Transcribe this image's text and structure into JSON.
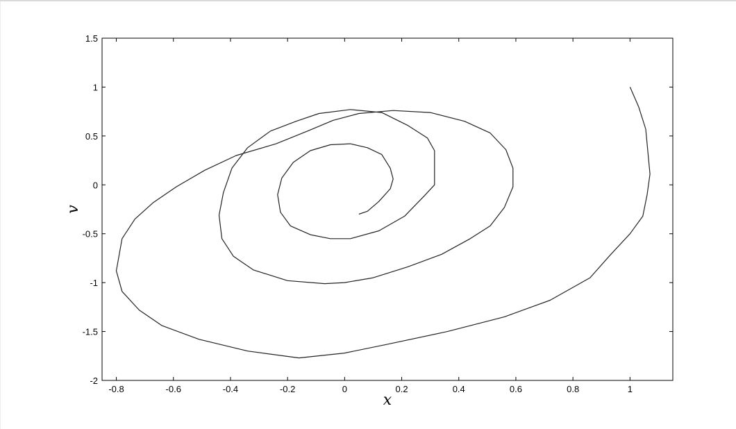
{
  "chart_data": {
    "type": "line",
    "title": "",
    "xlabel": "x",
    "ylabel": "v",
    "xlim": [
      -0.85,
      1.15
    ],
    "ylim": [
      -2,
      1.5
    ],
    "xticks": [
      -0.8,
      -0.6,
      -0.4,
      -0.2,
      0,
      0.2,
      0.4,
      0.6,
      0.8,
      1
    ],
    "xtick_labels": [
      "-0.8",
      "-0.6",
      "-0.4",
      "-0.2",
      "0",
      "0.2",
      "0.4",
      "0.6",
      "0.8",
      "1"
    ],
    "yticks": [
      -2,
      -1.5,
      -1,
      -0.5,
      0,
      0.5,
      1,
      1.5
    ],
    "ytick_labels": [
      "-2",
      "-1.5",
      "-1",
      "-0.5",
      "0",
      "0.5",
      "1",
      "1.5"
    ],
    "grid": false,
    "line_color": "#222222",
    "series": [
      {
        "x": [
          1.0,
          1.03,
          1.055,
          1.07,
          1.06,
          1.045,
          1.0,
          0.93,
          0.86,
          0.72,
          0.56,
          0.36,
          0.15,
          0.0,
          -0.16,
          -0.34,
          -0.51,
          -0.64,
          -0.72,
          -0.78,
          -0.8,
          -0.78,
          -0.735,
          -0.67,
          -0.59,
          -0.49,
          -0.38,
          -0.24,
          -0.13,
          -0.04,
          0.05,
          0.17,
          0.3,
          0.42,
          0.51,
          0.565,
          0.59,
          0.59,
          0.56,
          0.51,
          0.44,
          0.34,
          0.22,
          0.1,
          0.0,
          -0.07,
          -0.2,
          -0.32,
          -0.39,
          -0.43,
          -0.44,
          -0.425,
          -0.395,
          -0.34,
          -0.26,
          -0.17,
          -0.09,
          0.02,
          0.13,
          0.22,
          0.29,
          0.315,
          0.315,
          0.28,
          0.21,
          0.12,
          0.02,
          -0.05,
          -0.12,
          -0.19,
          -0.225,
          -0.235,
          -0.22,
          -0.18,
          -0.12,
          -0.05,
          0.02,
          0.08,
          0.13,
          0.16,
          0.17,
          0.16,
          0.12,
          0.08,
          0.05
        ],
        "y": [
          1.0,
          0.8,
          0.57,
          0.11,
          -0.1,
          -0.32,
          -0.5,
          -0.72,
          -0.95,
          -1.18,
          -1.35,
          -1.5,
          -1.63,
          -1.72,
          -1.77,
          -1.7,
          -1.58,
          -1.44,
          -1.28,
          -1.09,
          -0.88,
          -0.55,
          -0.35,
          -0.18,
          -0.02,
          0.15,
          0.3,
          0.42,
          0.55,
          0.66,
          0.73,
          0.76,
          0.74,
          0.65,
          0.53,
          0.36,
          0.17,
          -0.02,
          -0.23,
          -0.42,
          -0.55,
          -0.71,
          -0.84,
          -0.95,
          -1.0,
          -1.01,
          -0.98,
          -0.87,
          -0.73,
          -0.55,
          -0.31,
          -0.08,
          0.17,
          0.38,
          0.55,
          0.65,
          0.73,
          0.77,
          0.74,
          0.61,
          0.48,
          0.35,
          0.0,
          -0.11,
          -0.32,
          -0.47,
          -0.55,
          -0.55,
          -0.51,
          -0.42,
          -0.28,
          -0.1,
          0.07,
          0.23,
          0.35,
          0.41,
          0.42,
          0.38,
          0.31,
          0.17,
          0.06,
          -0.04,
          -0.17,
          -0.27,
          -0.3
        ]
      }
    ]
  }
}
